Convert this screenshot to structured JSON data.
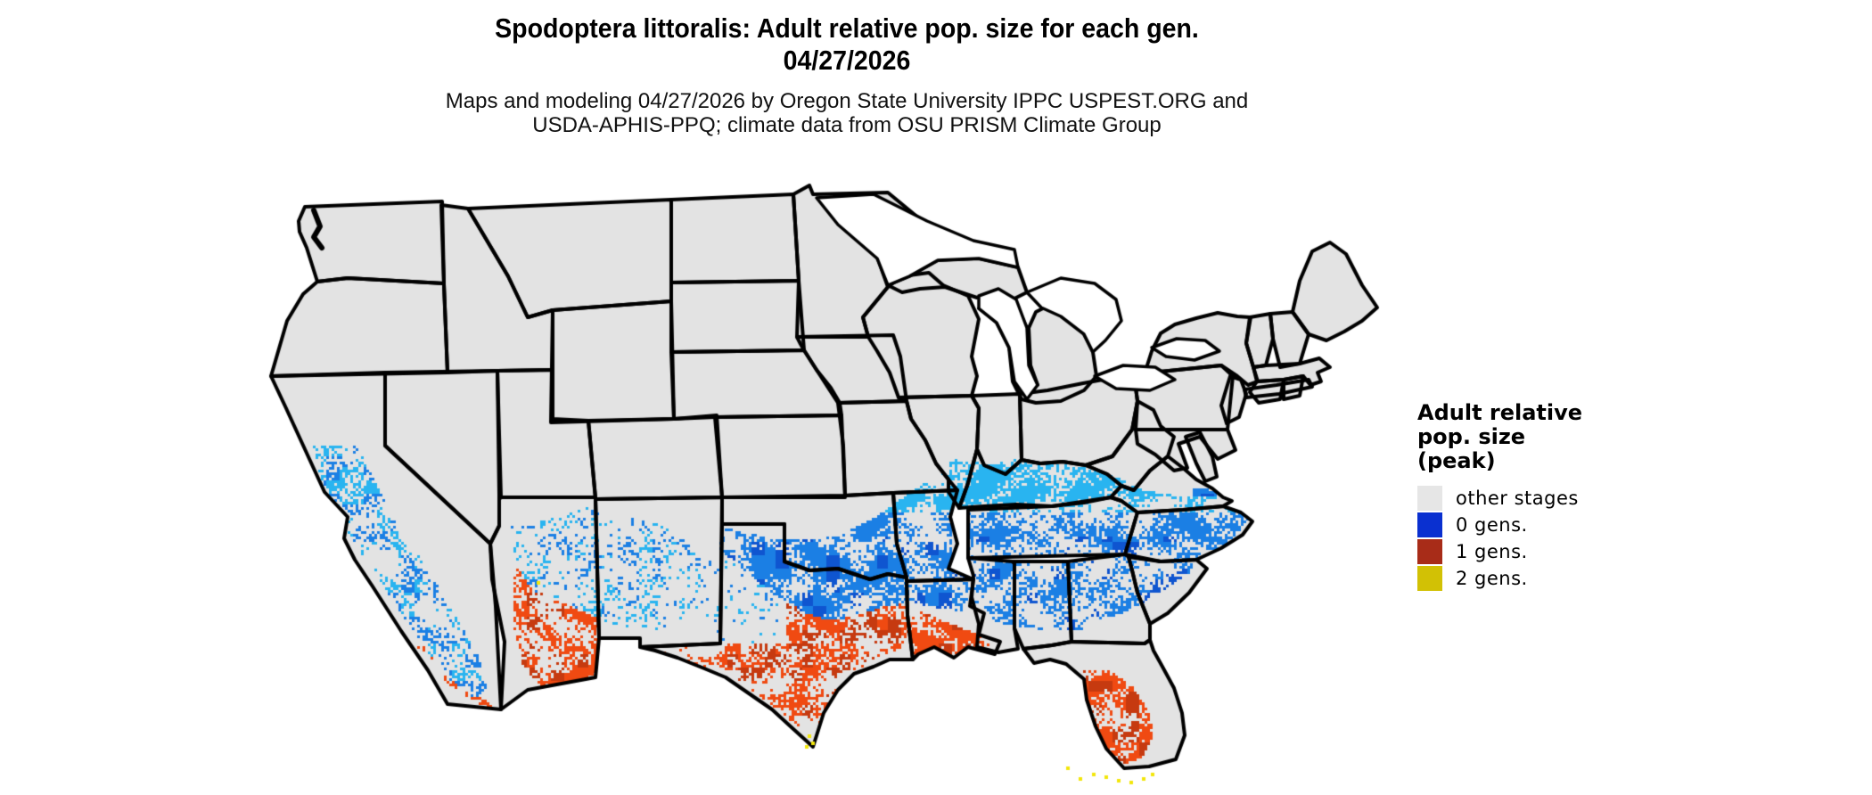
{
  "header": {
    "title_line1": "Spodoptera littoralis: Adult relative pop. size for each gen.",
    "title_line2": "04/27/2026",
    "subtitle_line1": "Maps and modeling 04/27/2026 by Oregon State University IPPC USPEST.ORG and",
    "subtitle_line2": "USDA-APHIS-PPQ; climate data from OSU PRISM Climate Group"
  },
  "legend": {
    "title_lines": [
      "Adult relative",
      "pop. size",
      "(peak)"
    ],
    "items": [
      {
        "label": "other stages",
        "color": "#e6e6e6"
      },
      {
        "label": "0 gens.",
        "color": "#0a30d0"
      },
      {
        "label": "1 gens.",
        "color": "#a82c18"
      },
      {
        "label": "2 gens.",
        "color": "#d2c105"
      }
    ]
  },
  "map": {
    "region": "contiguous United States",
    "land_fill": "#e3e3e3",
    "border_color": "#000000",
    "water_color": "#ffffff",
    "speckle_colors": {
      "blue_light": "#29b4f0",
      "blue_medium": "#1b7fe4",
      "blue_dark": "#0f55d0",
      "orange": "#f04a12",
      "red_dark": "#c63a10",
      "yellow": "#f2e60a"
    }
  }
}
